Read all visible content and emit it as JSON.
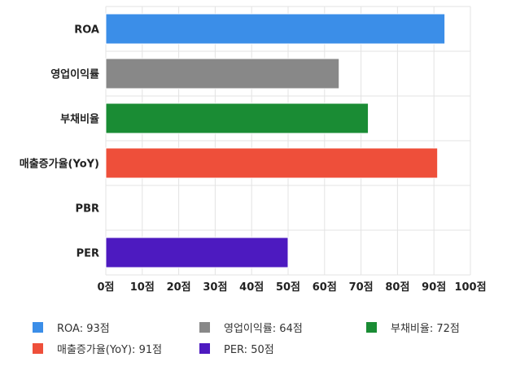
{
  "chart_data": {
    "type": "bar",
    "orientation": "horizontal",
    "categories": [
      "ROA",
      "영업이익률",
      "부채비율",
      "매출증가율(YoY)",
      "PBR",
      "PER"
    ],
    "values": [
      93,
      64,
      72,
      91,
      null,
      50
    ],
    "colors": [
      "#3b8ee8",
      "#888888",
      "#1a8c34",
      "#ee4f3a",
      null,
      "#4d1ac0"
    ],
    "xlim": [
      0,
      100
    ],
    "xticks": [
      0,
      10,
      20,
      30,
      40,
      50,
      60,
      70,
      80,
      90,
      100
    ],
    "tick_suffix": "점",
    "grid": true,
    "legend_position": "bottom",
    "legend": [
      {
        "label": "ROA: 93점",
        "color": "#3b8ee8"
      },
      {
        "label": "영업이익률: 64점",
        "color": "#888888"
      },
      {
        "label": "부채비율: 72점",
        "color": "#1a8c34"
      },
      {
        "label": "매출증가율(YoY): 91점",
        "color": "#ee4f3a"
      },
      {
        "label": "PER: 50점",
        "color": "#4d1ac0"
      }
    ]
  }
}
